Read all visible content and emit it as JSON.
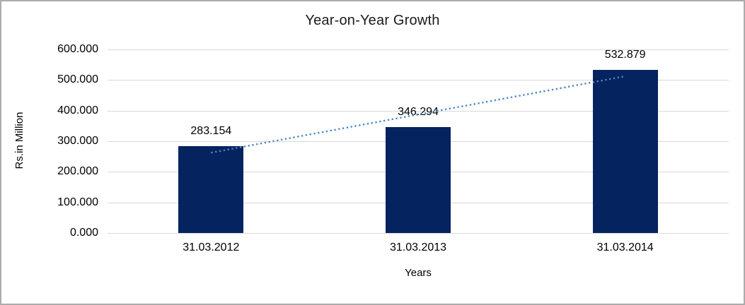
{
  "chart_data": {
    "type": "bar",
    "title": "Year-on-Year Growth",
    "xlabel": "Years",
    "ylabel": "Rs.in Million",
    "categories": [
      "31.03.2012",
      "31.03.2013",
      "31.03.2014"
    ],
    "values": [
      283.154,
      346.294,
      532.879
    ],
    "data_labels": [
      "283.154",
      "346.294",
      "532.879"
    ],
    "ylim": [
      0,
      600
    ],
    "ytick_step": 100,
    "ytick_labels": [
      "0.000",
      "100.000",
      "200.000",
      "300.000",
      "400.000",
      "500.000",
      "600.000"
    ],
    "grid": true,
    "legend": "none",
    "trendline": {
      "type": "linear",
      "style": "dotted",
      "series": "values"
    },
    "colors": {
      "bar": "#05235F",
      "trendline": "#4E87C7",
      "gridline": "#D9D9D9",
      "text": "#000000",
      "border": "#ABABAB",
      "background": "#FFFFFF"
    }
  }
}
